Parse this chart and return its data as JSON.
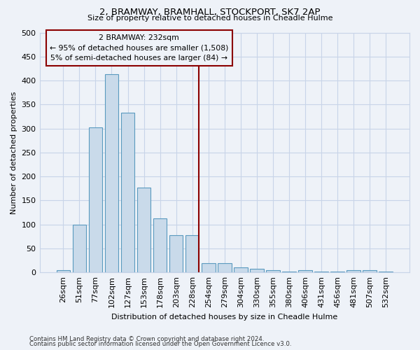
{
  "title1": "2, BRAMWAY, BRAMHALL, STOCKPORT, SK7 2AP",
  "title2": "Size of property relative to detached houses in Cheadle Hulme",
  "xlabel": "Distribution of detached houses by size in Cheadle Hulme",
  "ylabel": "Number of detached properties",
  "bar_labels": [
    "26sqm",
    "51sqm",
    "77sqm",
    "102sqm",
    "127sqm",
    "153sqm",
    "178sqm",
    "203sqm",
    "228sqm",
    "254sqm",
    "279sqm",
    "304sqm",
    "330sqm",
    "355sqm",
    "380sqm",
    "406sqm",
    "431sqm",
    "456sqm",
    "481sqm",
    "507sqm",
    "532sqm"
  ],
  "bar_values": [
    5,
    100,
    302,
    413,
    333,
    177,
    112,
    77,
    77,
    19,
    19,
    11,
    7,
    5,
    1,
    5,
    1,
    1,
    5,
    4,
    2
  ],
  "bar_color": "#c9daea",
  "bar_edge_color": "#5a9abf",
  "reference_line_x": 8.42,
  "annotation_label": "2 BRAMWAY: 232sqm",
  "annotation_line1": "← 95% of detached houses are smaller (1,508)",
  "annotation_line2": "5% of semi-detached houses are larger (84) →",
  "annotation_box_color": "#8b0000",
  "vline_color": "#8b0000",
  "grid_color": "#c8d4e8",
  "bg_color": "#eef2f8",
  "footnote1": "Contains HM Land Registry data © Crown copyright and database right 2024.",
  "footnote2": "Contains public sector information licensed under the Open Government Licence v3.0.",
  "ylim": [
    0,
    500
  ],
  "yticks": [
    0,
    50,
    100,
    150,
    200,
    250,
    300,
    350,
    400,
    450,
    500
  ]
}
